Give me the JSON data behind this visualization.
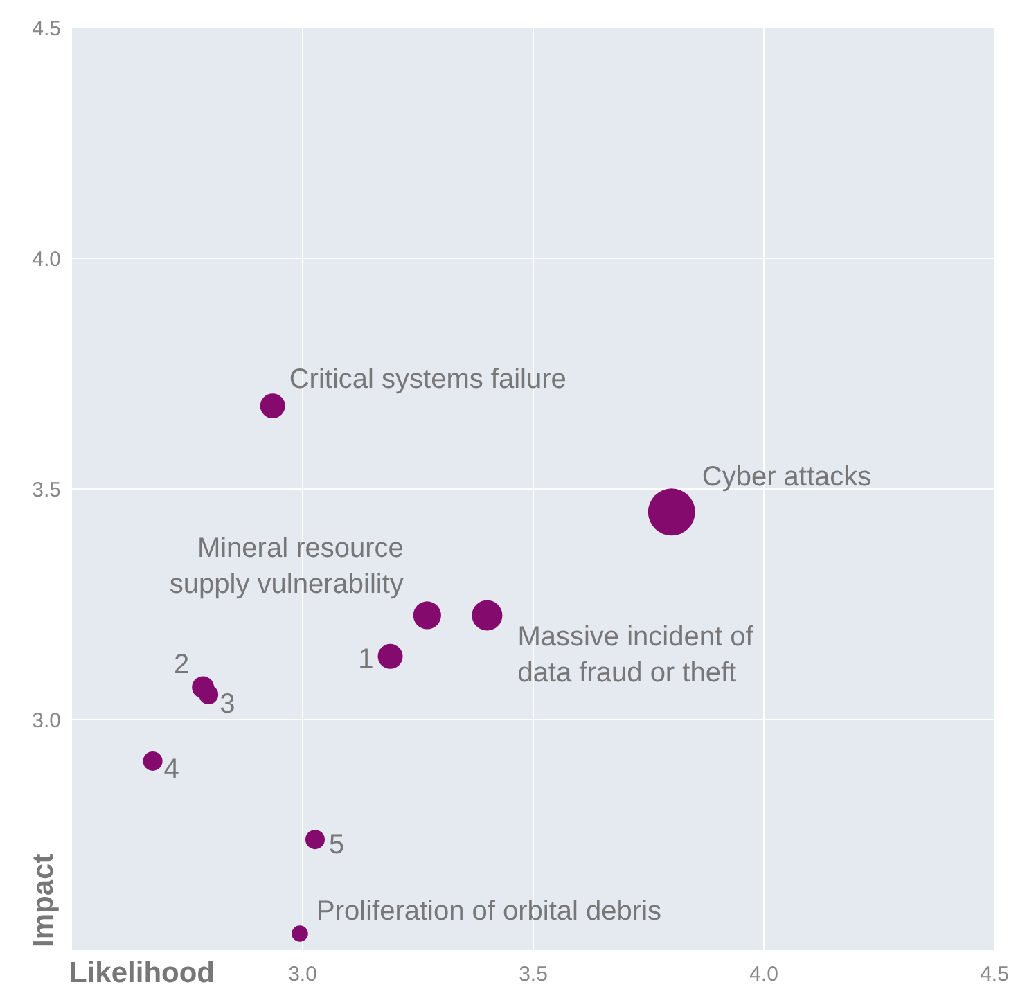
{
  "chart_data": {
    "type": "bubble",
    "xlabel": "Likelihood",
    "ylabel": "Impact",
    "xlim": [
      2.5,
      4.5
    ],
    "ylim": [
      2.5,
      4.5
    ],
    "xticks": [
      {
        "value": 3,
        "label": "3.0"
      },
      3.5,
      {
        "value": 4,
        "label": "4.0"
      },
      4.5
    ],
    "yticks": [
      {
        "value": 3,
        "label": "3.0"
      },
      3.5,
      {
        "value": 4,
        "label": "4.0"
      },
      4.5
    ],
    "grid": true,
    "series": [
      {
        "color": "#850a6e",
        "x": [
          2.935,
          3.8,
          3.27,
          3.4,
          3.19,
          2.784,
          2.796,
          2.675,
          3.027,
          2.994
        ],
        "values": [
          3.68,
          3.45,
          3.226,
          3.226,
          3.137,
          3.07,
          3.054,
          2.91,
          2.74,
          2.536
        ],
        "sizes": [
          0.28,
          1,
          0.35,
          0.42,
          0.28,
          0.22,
          0.17,
          0.17,
          0.17,
          0.12
        ]
      }
    ],
    "annotations": [
      {
        "text": "Critical systems failure",
        "x": 2.935,
        "y": 3.68
      },
      {
        "text": "Cyber attacks",
        "x": 3.8,
        "y": 3.45
      },
      {
        "text": "Mineral resource\nsupply vulnerability",
        "x": 3.27,
        "y": 3.226
      },
      {
        "text": "Massive incident of\ndata fraud or theft",
        "x": 3.4,
        "y": 3.226
      },
      {
        "text": "1",
        "x": 3.19,
        "y": 3.137
      },
      {
        "text": "2",
        "x": 2.784,
        "y": 3.07
      },
      {
        "text": "3",
        "x": 2.796,
        "y": 3.054
      },
      {
        "text": "4",
        "x": 2.675,
        "y": 2.91
      },
      {
        "text": "5",
        "x": 3.027,
        "y": 2.74
      },
      {
        "text": "Proliferation of orbital debris",
        "x": 2.994,
        "y": 2.536
      }
    ]
  }
}
